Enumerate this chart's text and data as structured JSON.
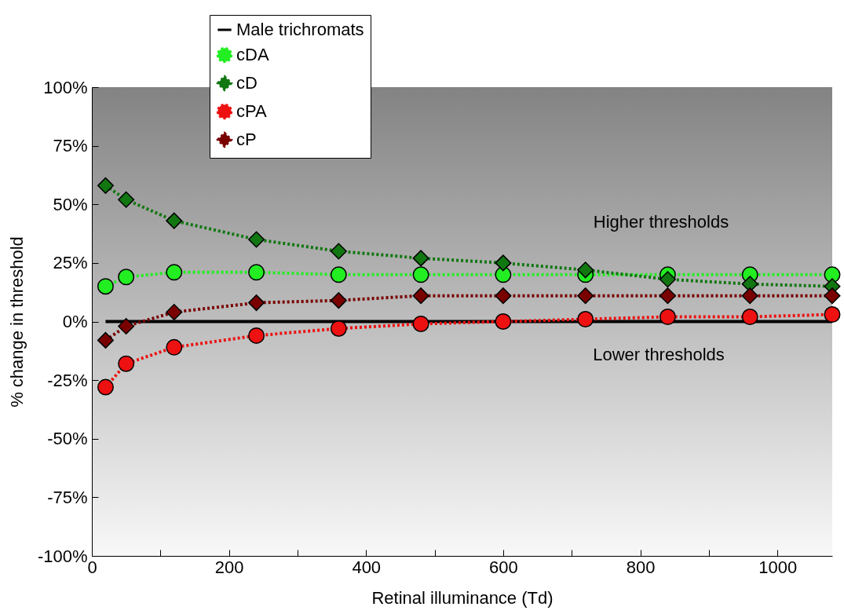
{
  "chart_data": {
    "type": "line",
    "xlabel": "Retinal illuminance (Td)",
    "ylabel": "% change in threshold",
    "x": [
      20,
      50,
      120,
      240,
      360,
      480,
      600,
      720,
      840,
      960,
      1080
    ],
    "series": [
      {
        "name": "Male trichromats",
        "color": "#000000",
        "marker": "none",
        "line_style": "solid",
        "values": [
          0,
          0,
          0,
          0,
          0,
          0,
          0,
          0,
          0,
          0,
          0
        ]
      },
      {
        "name": "cDA",
        "color": "#22ee22",
        "marker": "circle",
        "line_style": "dotted",
        "values": [
          15,
          19,
          21,
          21,
          20,
          20,
          20,
          20,
          20,
          20,
          20
        ]
      },
      {
        "name": "cD",
        "color": "#117711",
        "marker": "diamond",
        "line_style": "dotted",
        "values": [
          58,
          52,
          43,
          35,
          30,
          27,
          25,
          22,
          18,
          16,
          15
        ]
      },
      {
        "name": "cPA",
        "color": "#ee1111",
        "marker": "circle",
        "line_style": "dotted",
        "values": [
          -28,
          -18,
          -11,
          -6,
          -3,
          -1,
          0,
          1,
          2,
          2,
          3
        ]
      },
      {
        "name": "cP",
        "color": "#7a0000",
        "marker": "diamond",
        "line_style": "dotted",
        "values": [
          -8,
          -2,
          4,
          8,
          9,
          11,
          11,
          11,
          11,
          11,
          11
        ]
      }
    ],
    "xlim": [
      0,
      1080
    ],
    "xticks": [
      0,
      {
        "value": 100,
        "label": null
      },
      200,
      {
        "value": 300,
        "label": null
      },
      400,
      {
        "value": 500,
        "label": null
      },
      600,
      {
        "value": 700,
        "label": null
      },
      800,
      {
        "value": 900,
        "label": null
      },
      1000
    ],
    "ylim": [
      -100,
      100
    ],
    "yticks": [
      {
        "value": -100,
        "label": "-100%"
      },
      {
        "value": -75,
        "label": "-75%"
      },
      {
        "value": -50,
        "label": "-50%"
      },
      {
        "value": -25,
        "label": "-25%"
      },
      {
        "value": 0,
        "label": "0%"
      },
      {
        "value": 25,
        "label": "25%"
      },
      {
        "value": 50,
        "label": "50%"
      },
      {
        "value": 75,
        "label": "75%"
      },
      {
        "value": 100,
        "label": "100%"
      }
    ],
    "annotations": [
      "Higher thresholds",
      "Lower thresholds"
    ],
    "legend": "top left",
    "grid": false
  }
}
